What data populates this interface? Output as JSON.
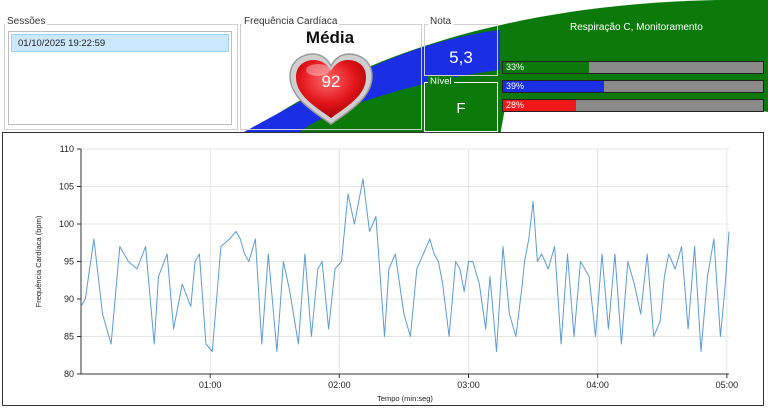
{
  "sessions": {
    "label": "Sessões",
    "items": [
      "01/10/2025 19:22:59"
    ]
  },
  "heart_rate": {
    "label": "Frequência Cardíaca",
    "mode": "Média",
    "value": "92"
  },
  "score": {
    "label": "Nota",
    "value": "5,3"
  },
  "level": {
    "label": "Nível",
    "value": "F"
  },
  "breathing": {
    "title": "Respiração C, Monitoramento",
    "bars": [
      {
        "text": "33%",
        "percent": 33,
        "color": "#0b7a0b"
      },
      {
        "text": "39%",
        "percent": 39,
        "color": "#1a2ee6"
      },
      {
        "text": "28%",
        "percent": 28,
        "color": "#f01818"
      }
    ]
  },
  "colors": {
    "green": "#0b7a0b",
    "blue": "#1a2ee6",
    "heart_red": "#e3161b",
    "line": "#5b9bd5"
  },
  "chart_data": {
    "type": "line",
    "xlabel": "Tempo (min:seg)",
    "ylabel": "Frequência Cardíaca (bpm)",
    "ylim": [
      80,
      110
    ],
    "xlim": [
      0,
      301
    ],
    "yticks": [
      "80",
      "85",
      "90",
      "95",
      "100",
      "105",
      "110"
    ],
    "xticks": [
      {
        "t": 60,
        "label": "01:00"
      },
      {
        "t": 120,
        "label": "02:00"
      },
      {
        "t": 180,
        "label": "03:00"
      },
      {
        "t": 240,
        "label": "04:00"
      },
      {
        "t": 300,
        "label": "05:00"
      }
    ],
    "grid": true,
    "series": [
      {
        "x": [
          0,
          2,
          6,
          10,
          14,
          18,
          22,
          26,
          30,
          34,
          36,
          40,
          43,
          47,
          51,
          53,
          55,
          58,
          61,
          65,
          69,
          72,
          74,
          76,
          78,
          81,
          84,
          87,
          91,
          94,
          97,
          101,
          104,
          107,
          110,
          112,
          115,
          118,
          121,
          124,
          127,
          131,
          134,
          137,
          141,
          143,
          146,
          150,
          153,
          156,
          159,
          162,
          164,
          166,
          168,
          171,
          174,
          176,
          178,
          180,
          182,
          185,
          188,
          190,
          193,
          196,
          199,
          202,
          205,
          206,
          208,
          210,
          212,
          214,
          217,
          220,
          223,
          226,
          229,
          232,
          236,
          239,
          242,
          245,
          248,
          251,
          254,
          257,
          260,
          263,
          266,
          269,
          271,
          273,
          276,
          279,
          282,
          285,
          288,
          291,
          294,
          297,
          299,
          301
        ],
        "y": [
          89,
          90,
          98,
          88,
          84,
          97,
          95,
          94,
          97,
          84,
          93,
          96,
          86,
          92,
          89,
          95,
          96,
          84,
          83,
          97,
          98,
          99,
          98,
          96,
          95,
          98,
          84,
          96,
          83,
          95,
          91,
          84,
          96,
          85,
          94,
          95,
          86,
          94,
          95,
          104,
          100,
          106,
          99,
          101,
          85,
          94,
          96,
          88,
          85,
          94,
          96,
          98,
          96,
          95,
          92,
          85,
          95,
          94,
          91,
          95,
          95,
          92,
          86,
          93,
          83,
          97,
          88,
          85,
          92,
          95,
          98,
          103,
          95,
          96,
          94,
          97,
          84,
          96,
          85,
          95,
          93,
          85,
          96,
          86,
          96,
          84,
          95,
          92,
          88,
          96,
          85,
          87,
          93,
          96,
          94,
          97,
          86,
          97,
          83,
          93,
          98,
          85,
          91,
          99
        ]
      }
    ]
  }
}
